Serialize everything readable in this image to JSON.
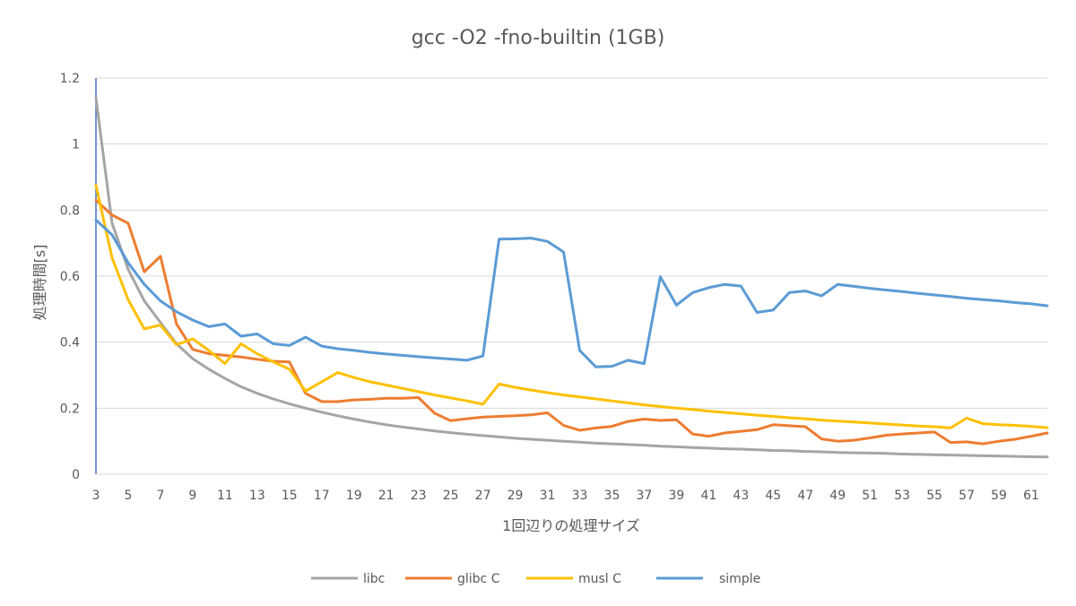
{
  "chart_data": {
    "type": "line",
    "title": "gcc -O2 -fno-builtin (1GB)",
    "xlabel": "1回辺りの処理サイズ",
    "ylabel": "処理時間[s]",
    "ylim": [
      0,
      1.2
    ],
    "yticks": [
      0,
      0.2,
      0.4,
      0.6,
      0.8,
      1,
      1.2
    ],
    "ytick_labels": [
      "0",
      "0.2",
      "0.4",
      "0.6",
      "0.8",
      "1",
      "1.2"
    ],
    "xlim": [
      3,
      62
    ],
    "xticks": [
      3,
      5,
      7,
      9,
      11,
      13,
      15,
      17,
      19,
      21,
      23,
      25,
      27,
      29,
      31,
      33,
      35,
      37,
      39,
      41,
      43,
      45,
      47,
      49,
      51,
      53,
      55,
      57,
      59,
      61
    ],
    "xtick_labels": [
      "3",
      "5",
      "7",
      "9",
      "11",
      "13",
      "15",
      "17",
      "19",
      "21",
      "23",
      "25",
      "27",
      "29",
      "31",
      "33",
      "35",
      "37",
      "39",
      "41",
      "43",
      "45",
      "47",
      "49",
      "51",
      "53",
      "55",
      "57",
      "59",
      "61"
    ],
    "grid": "horizontal",
    "legend_position": "bottom",
    "x": [
      3,
      4,
      5,
      6,
      7,
      8,
      9,
      10,
      11,
      12,
      13,
      14,
      15,
      16,
      17,
      18,
      19,
      20,
      21,
      22,
      23,
      24,
      25,
      26,
      27,
      28,
      29,
      30,
      31,
      32,
      33,
      34,
      35,
      36,
      37,
      38,
      39,
      40,
      41,
      42,
      43,
      44,
      45,
      46,
      47,
      48,
      49,
      50,
      51,
      52,
      53,
      54,
      55,
      56,
      57,
      58,
      59,
      60,
      61,
      62
    ],
    "series": [
      {
        "name": "libc",
        "color": "#a5a5a5",
        "values": [
          1.14,
          0.76,
          0.62,
          0.525,
          0.46,
          0.395,
          0.35,
          0.318,
          0.29,
          0.265,
          0.245,
          0.228,
          0.213,
          0.2,
          0.188,
          0.177,
          0.167,
          0.158,
          0.15,
          0.143,
          0.137,
          0.131,
          0.126,
          0.121,
          0.117,
          0.113,
          0.109,
          0.106,
          0.103,
          0.1,
          0.097,
          0.094,
          0.092,
          0.09,
          0.088,
          0.085,
          0.083,
          0.081,
          0.079,
          0.077,
          0.076,
          0.074,
          0.072,
          0.071,
          0.069,
          0.068,
          0.066,
          0.065,
          0.064,
          0.063,
          0.061,
          0.06,
          0.059,
          0.058,
          0.057,
          0.056,
          0.055,
          0.054,
          0.053,
          0.052
        ]
      },
      {
        "name": "glibc C",
        "color": "#ed7d31",
        "values": [
          0.83,
          0.785,
          0.76,
          0.613,
          0.66,
          0.455,
          0.378,
          0.365,
          0.36,
          0.355,
          0.348,
          0.342,
          0.34,
          0.245,
          0.22,
          0.22,
          0.225,
          0.227,
          0.23,
          0.23,
          0.232,
          0.185,
          0.162,
          0.168,
          0.173,
          0.175,
          0.177,
          0.18,
          0.186,
          0.148,
          0.133,
          0.14,
          0.145,
          0.16,
          0.167,
          0.163,
          0.165,
          0.122,
          0.115,
          0.125,
          0.13,
          0.135,
          0.15,
          0.147,
          0.144,
          0.107,
          0.1,
          0.103,
          0.11,
          0.118,
          0.122,
          0.125,
          0.128,
          0.096,
          0.098,
          0.092,
          0.1,
          0.106,
          0.115,
          0.125
        ]
      },
      {
        "name": "musl C",
        "color": "#ffc000",
        "values": [
          0.875,
          0.655,
          0.528,
          0.44,
          0.452,
          0.392,
          0.41,
          0.375,
          0.335,
          0.395,
          0.365,
          0.34,
          0.318,
          0.252,
          0.28,
          0.308,
          0.293,
          0.28,
          0.27,
          0.26,
          0.25,
          0.24,
          0.231,
          0.222,
          0.212,
          0.273,
          0.263,
          0.255,
          0.247,
          0.24,
          0.234,
          0.228,
          0.222,
          0.216,
          0.21,
          0.205,
          0.2,
          0.196,
          0.191,
          0.187,
          0.183,
          0.179,
          0.175,
          0.171,
          0.168,
          0.164,
          0.161,
          0.158,
          0.155,
          0.152,
          0.149,
          0.146,
          0.144,
          0.14,
          0.17,
          0.153,
          0.15,
          0.148,
          0.145,
          0.141
        ]
      },
      {
        "name": "simple",
        "color": "#5b9bd5",
        "values": [
          0.77,
          0.725,
          0.64,
          0.575,
          0.525,
          0.492,
          0.467,
          0.447,
          0.455,
          0.418,
          0.425,
          0.395,
          0.39,
          0.415,
          0.388,
          0.38,
          0.375,
          0.369,
          0.364,
          0.36,
          0.356,
          0.352,
          0.349,
          0.345,
          0.358,
          0.712,
          0.713,
          0.715,
          0.705,
          0.673,
          0.375,
          0.325,
          0.327,
          0.345,
          0.335,
          0.598,
          0.512,
          0.55,
          0.565,
          0.575,
          0.57,
          0.49,
          0.497,
          0.55,
          0.555,
          0.54,
          0.575,
          0.569,
          0.563,
          0.558,
          0.553,
          0.548,
          0.543,
          0.538,
          0.533,
          0.529,
          0.525,
          0.52,
          0.516,
          0.51
        ]
      }
    ]
  }
}
